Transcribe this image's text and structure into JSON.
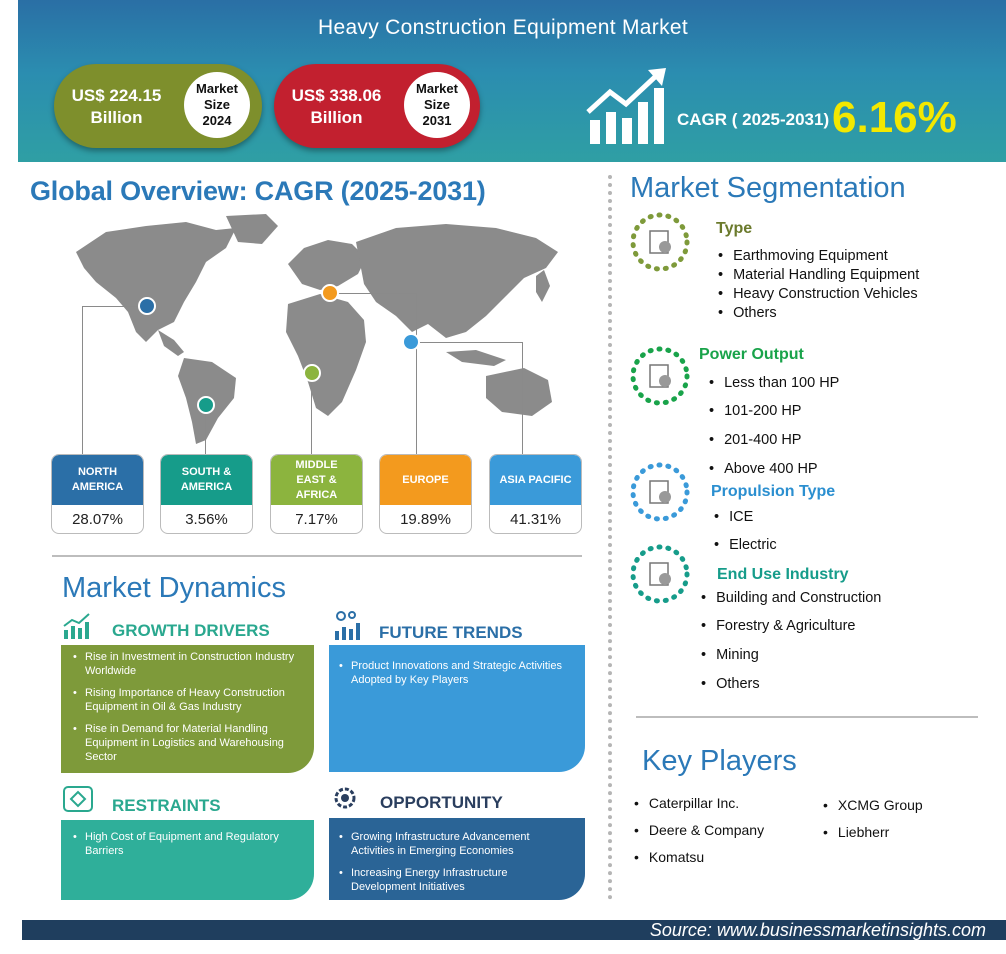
{
  "header": {
    "title": "Heavy Construction Equipment Market",
    "market_2024": {
      "value": "US$ 224.15 Billion",
      "value_line1": "US$ 224.15",
      "value_line2": "Billion",
      "badge_line1": "Market",
      "badge_line2": "Size",
      "badge_line3": "2024",
      "color": "#7e8f2c"
    },
    "market_2031": {
      "value_line1": "US$ 338.06",
      "value_line2": "Billion",
      "badge_line1": "Market",
      "badge_line2": "Size",
      "badge_line3": "2031",
      "color": "#c2202f"
    },
    "cagr_label": "CAGR ( 2025-2031)",
    "cagr_value": "6.16%"
  },
  "overview": {
    "title": "Global Overview: CAGR (2025-2031)",
    "regions": [
      {
        "name_line1": "NORTH",
        "name_line2": "AMERICA",
        "name_line3": "",
        "value": "28.07%",
        "color": "#2b6fa7"
      },
      {
        "name_line1": "SOUTH  &",
        "name_line2": "AMERICA",
        "name_line3": "",
        "value": "3.56%",
        "color": "#169c8a"
      },
      {
        "name_line1": "MIDDLE",
        "name_line2": "EAST &",
        "name_line3": "AFRICA",
        "value": "7.17%",
        "color": "#8cb43e"
      },
      {
        "name_line1": "EUROPE",
        "name_line2": "",
        "name_line3": "",
        "value": "19.89%",
        "color": "#f39a1e"
      },
      {
        "name_line1": "ASIA PACIFIC",
        "name_line2": "",
        "name_line3": "",
        "value": "41.31%",
        "color": "#3a9ad9"
      }
    ]
  },
  "dynamics": {
    "title": "Market Dynamics",
    "growth_drivers": {
      "heading": "GROWTH DRIVERS",
      "items": [
        "Rise in Investment in Construction Industry Worldwide",
        "Rising Importance of Heavy Construction Equipment in Oil & Gas Industry",
        "Rise in Demand for Material Handling Equipment in Logistics and Warehousing Sector"
      ]
    },
    "future_trends": {
      "heading": "FUTURE TRENDS",
      "items": [
        "Product Innovations and Strategic Activities Adopted by Key Players"
      ]
    },
    "restraints": {
      "heading": "RESTRAINTS",
      "items": [
        "High Cost of Equipment and Regulatory Barriers"
      ]
    },
    "opportunity": {
      "heading": "OPPORTUNITY",
      "items": [
        "Growing Infrastructure Advancement Activities in Emerging Economies",
        "Increasing Energy Infrastructure Development Initiatives"
      ]
    }
  },
  "segmentation": {
    "title": "Market Segmentation",
    "type": {
      "heading": "Type",
      "items": [
        "Earthmoving Equipment",
        "Material Handling Equipment",
        "Heavy Construction Vehicles",
        "Others"
      ]
    },
    "power": {
      "heading": "Power Output",
      "items": [
        "Less than 100 HP",
        "101-200  HP",
        "201-400  HP",
        "Above 400 HP"
      ]
    },
    "propulsion": {
      "heading": "Propulsion Type",
      "items": [
        "ICE",
        "Electric"
      ]
    },
    "end_use": {
      "heading": "End Use Industry",
      "items": [
        "Building and Construction",
        "Forestry  & Agriculture",
        "Mining",
        "Others"
      ]
    }
  },
  "key_players": {
    "title": "Key Players",
    "items": [
      "Caterpillar Inc.",
      "Deere  & Company",
      "Komatsu",
      "XCMG Group",
      "Liebherr"
    ]
  },
  "footer": {
    "source": "Source:  www.businessmarketinsights.com"
  },
  "colors": {
    "accent_blue": "#2b79b8",
    "growth_green": "#7e9a3a",
    "trend_blue": "#3a9ad9",
    "restraint_teal": "#2faf9a",
    "opportunity_navy": "#2a6496"
  }
}
